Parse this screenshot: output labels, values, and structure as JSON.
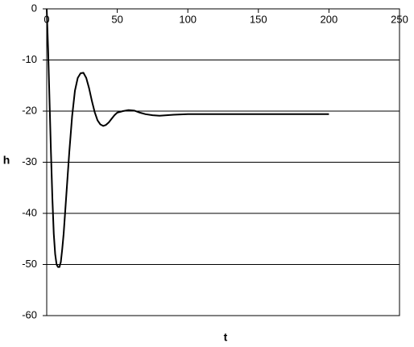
{
  "chart_data": {
    "type": "line",
    "x_label": "t",
    "y_label": "h",
    "x": [
      0,
      1,
      2,
      3,
      4,
      5,
      6,
      7,
      8,
      9,
      10,
      11,
      12,
      13,
      14,
      16,
      18,
      20,
      22,
      24,
      26,
      28,
      30,
      32,
      34,
      36,
      38,
      40,
      42,
      44,
      46,
      48,
      50,
      54,
      58,
      62,
      66,
      70,
      75,
      80,
      90,
      100,
      120,
      150,
      200
    ],
    "values": [
      0,
      -8,
      -18,
      -28,
      -37,
      -44,
      -48,
      -50,
      -50.5,
      -50.5,
      -49.5,
      -47,
      -44,
      -40,
      -36,
      -28,
      -21,
      -16,
      -13.5,
      -12.6,
      -12.5,
      -13.5,
      -15.5,
      -18,
      -20.2,
      -21.8,
      -22.6,
      -22.9,
      -22.7,
      -22.2,
      -21.5,
      -20.8,
      -20.3,
      -20,
      -19.8,
      -19.9,
      -20.3,
      -20.6,
      -20.8,
      -20.9,
      -20.7,
      -20.6,
      -20.6,
      -20.6,
      -20.6
    ],
    "color": "#000000",
    "xlim": [
      0,
      250
    ],
    "ylim": [
      -60,
      0
    ],
    "xticks": [
      0,
      50,
      100,
      150,
      200,
      250
    ],
    "yticks": [
      0,
      -10,
      -20,
      -30,
      -40,
      -50,
      -60
    ],
    "grid": true
  }
}
